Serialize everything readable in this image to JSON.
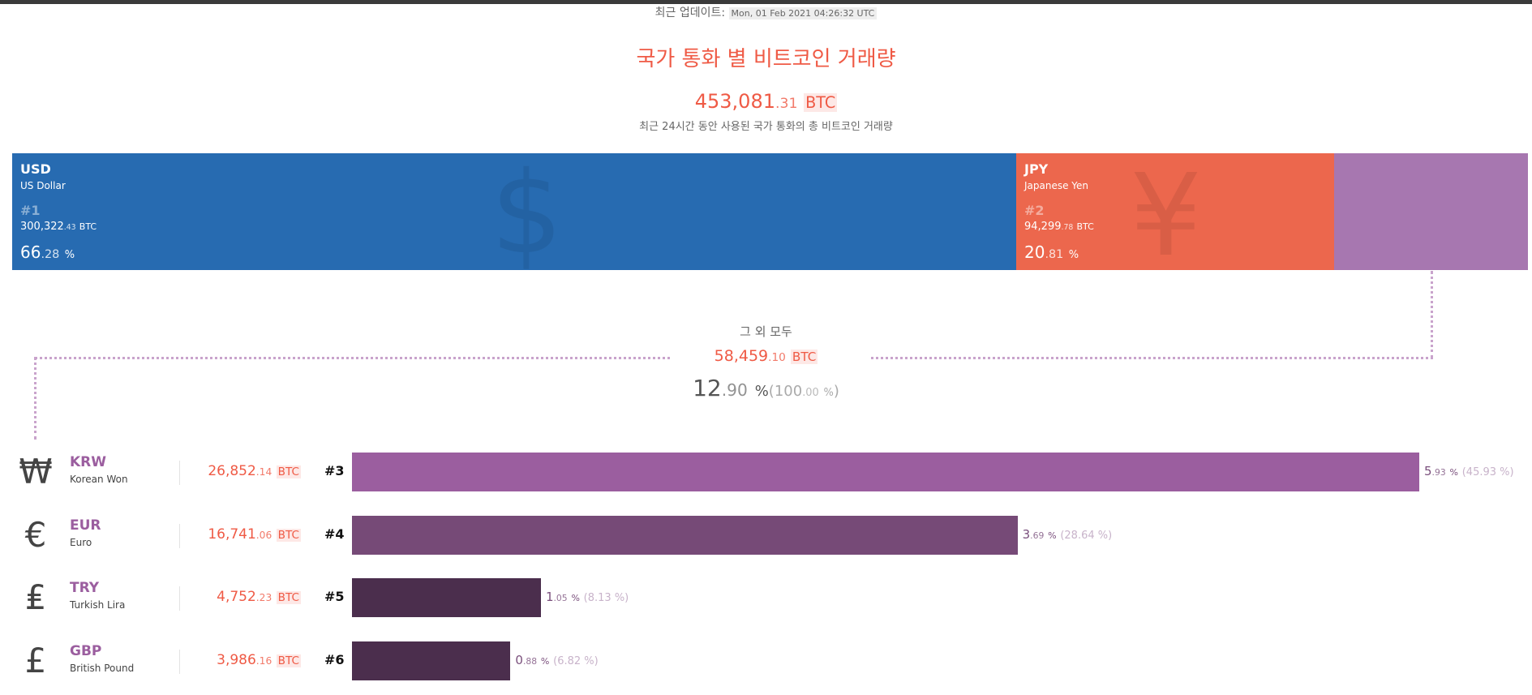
{
  "header": {
    "update_label": "최근 업데이트:",
    "update_timestamp": "Mon, 01 Feb 2021 04:26:32 UTC",
    "title": "국가 통화 별 비트코인 거래량",
    "total_int": "453,081",
    "total_dec": ".31",
    "unit": "BTC",
    "subtitle": "최근 24시간 동안 사용된 국가 통화의 총 비트코인 거래량"
  },
  "colors": {
    "USD": "#276bb1",
    "JPY": "#ec674d",
    "others": "#a777b0",
    "KRW": "#9b5e9f",
    "EUR": "#764a77",
    "TRY": "#4b2e4d",
    "GBP": "#4b2e4d",
    "accent": "#ef5a45"
  },
  "top": [
    {
      "code": "USD",
      "name": "US Dollar",
      "rank": "#1",
      "amt_int": "300,322",
      "amt_dec": ".43",
      "unit": "BTC",
      "pct_int": "66",
      "pct_dec": ".28",
      "pct_sign": "%",
      "symbol": "$",
      "symbol_icon": "dollar-icon",
      "share": 66.28
    },
    {
      "code": "JPY",
      "name": "Japanese Yen",
      "rank": "#2",
      "amt_int": "94,299",
      "amt_dec": ".78",
      "unit": "BTC",
      "pct_int": "20",
      "pct_dec": ".81",
      "pct_sign": "%",
      "symbol": "¥",
      "symbol_icon": "yen-icon",
      "share": 20.81
    }
  ],
  "others": {
    "label": "그 외 모두",
    "amt_int": "58,459",
    "amt_dec": ".10",
    "unit": "BTC",
    "pct_int": "12",
    "pct_dec": ".90",
    "pct_sign": "%",
    "total_pct_open": "(",
    "total_pct_int": "100",
    "total_pct_dec": ".00",
    "total_pct_sign": "%",
    "total_pct_close": ")",
    "share": 12.9
  },
  "rows": [
    {
      "symbol": "₩",
      "code": "KRW",
      "name": "Korean Won",
      "amt_int": "26,852",
      "amt_dec": ".14",
      "unit": "BTC",
      "rank": "#3",
      "pct_int": "5",
      "pct_dec": ".93",
      "pct_sign": "%",
      "rel": "(45.93 %)",
      "share_of_others": 45.93
    },
    {
      "symbol": "€",
      "code": "EUR",
      "name": "Euro",
      "amt_int": "16,741",
      "amt_dec": ".06",
      "unit": "BTC",
      "rank": "#4",
      "pct_int": "3",
      "pct_dec": ".69",
      "pct_sign": "%",
      "rel": "(28.64 %)",
      "share_of_others": 28.64
    },
    {
      "symbol": "₤",
      "code": "TRY",
      "name": "Turkish Lira",
      "amt_int": "4,752",
      "amt_dec": ".23",
      "unit": "BTC",
      "rank": "#5",
      "pct_int": "1",
      "pct_dec": ".05",
      "pct_sign": "%",
      "rel": "(8.13 %)",
      "share_of_others": 8.13
    },
    {
      "symbol": "£",
      "code": "GBP",
      "name": "British Pound",
      "amt_int": "3,986",
      "amt_dec": ".16",
      "unit": "BTC",
      "rank": "#6",
      "pct_int": "0",
      "pct_dec": ".88",
      "pct_sign": "%",
      "rel": "(6.82 %)",
      "share_of_others": 6.82
    }
  ]
}
